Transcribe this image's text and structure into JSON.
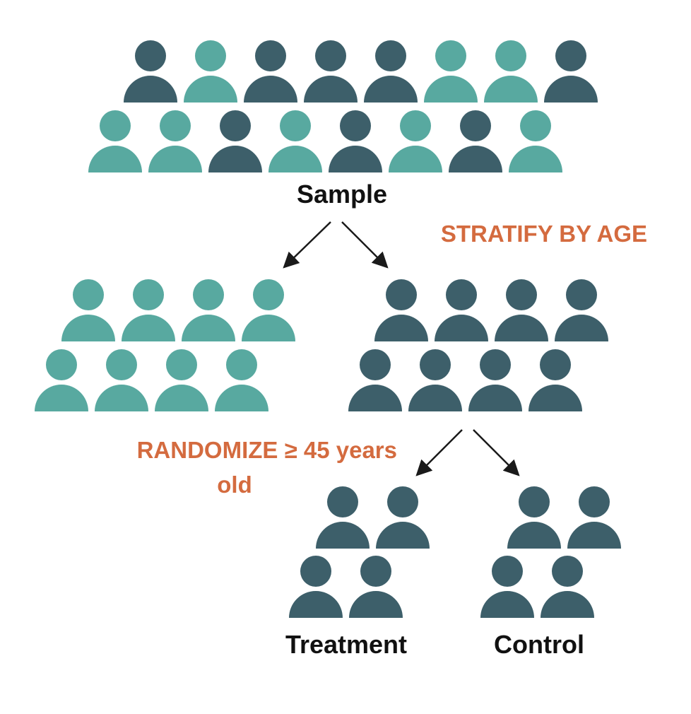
{
  "colors": {
    "dark": "#3d5f6a",
    "light": "#58a9a0",
    "accent": "#d46b3f",
    "arrow": "#1a1a1a",
    "text": "#111111"
  },
  "labels": {
    "sample": "Sample",
    "stratify": "STRATIFY BY AGE",
    "randomize_line1": "RANDOMIZE  ≥ 45 years",
    "randomize_line2": "old",
    "treatment": "Treatment",
    "control": "Control"
  },
  "groups": {
    "sample": {
      "rows": [
        [
          "dark",
          "light",
          "dark",
          "dark",
          "dark",
          "light",
          "light",
          "dark"
        ],
        [
          "light",
          "light",
          "dark",
          "light",
          "dark",
          "light",
          "dark",
          "light"
        ]
      ]
    },
    "stratum_young": {
      "rows": [
        [
          "light",
          "light",
          "light",
          "light"
        ],
        [
          "light",
          "light",
          "light",
          "light"
        ]
      ]
    },
    "stratum_old": {
      "rows": [
        [
          "dark",
          "dark",
          "dark",
          "dark"
        ],
        [
          "dark",
          "dark",
          "dark",
          "dark"
        ]
      ]
    },
    "treatment": {
      "rows": [
        [
          "dark",
          "dark"
        ],
        [
          "dark",
          "dark"
        ]
      ]
    },
    "control": {
      "rows": [
        [
          "dark",
          "dark"
        ],
        [
          "dark",
          "dark"
        ]
      ]
    }
  }
}
